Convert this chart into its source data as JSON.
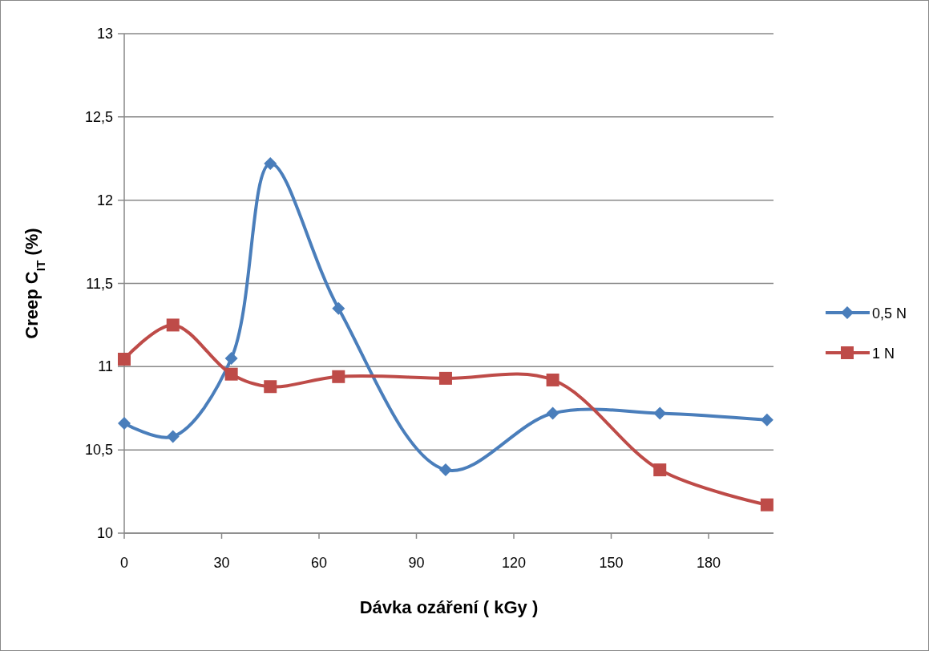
{
  "chart_data": {
    "type": "line",
    "xlabel": "Dávka ozáření ( kGy )",
    "ylabel": "Creep C$_{IT}$ (%)",
    "x": [
      0,
      15,
      33,
      45,
      66,
      99,
      132,
      165,
      198
    ],
    "series": [
      {
        "name": "0,5 N",
        "color": "#4a7ebb",
        "marker": "diamond",
        "values": [
          10.66,
          10.58,
          11.05,
          12.22,
          11.35,
          10.38,
          10.72,
          10.72,
          10.68
        ]
      },
      {
        "name": "1 N",
        "color": "#be4b48",
        "marker": "square",
        "values": [
          11.045,
          11.25,
          10.955,
          10.88,
          10.94,
          10.93,
          10.92,
          10.38,
          10.17
        ]
      }
    ],
    "xlim": [
      0,
      200
    ],
    "xticks": [
      0,
      30,
      60,
      90,
      120,
      150,
      180
    ],
    "ylim": [
      10,
      13
    ],
    "yticks": [
      10,
      {
        "value": 10.5,
        "label": "10,5"
      },
      11,
      {
        "value": 11.5,
        "label": "11,5"
      },
      12,
      {
        "value": 12.5,
        "label": "12,5"
      },
      13
    ],
    "grid": "y",
    "legend": "right"
  }
}
